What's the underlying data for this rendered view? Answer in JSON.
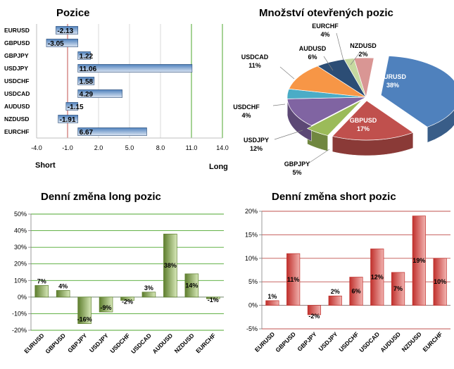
{
  "chart_data": [
    {
      "id": "pozice",
      "type": "bar",
      "orientation": "horizontal",
      "title": "Pozice",
      "categories": [
        "EURUSD",
        "GBPUSD",
        "GBPJPY",
        "USDJPY",
        "USDCHF",
        "USDCAD",
        "AUDUSD",
        "NZDUSD",
        "EURCHF"
      ],
      "values": [
        -2.13,
        -3.05,
        1.22,
        11.06,
        1.58,
        4.29,
        -1.15,
        -1.91,
        6.67
      ],
      "value_labels": [
        "-2.13",
        "-3.05",
        "1.22",
        "11.06",
        "1.58",
        "4.29",
        "-1.15",
        "-1.91",
        "6.67"
      ],
      "xlim": [
        -4.0,
        14.0
      ],
      "xticks": [
        "-4.0",
        "-1.0",
        "2.0",
        "5.0",
        "8.0",
        "11.0",
        "14.0"
      ],
      "xtick_values": [
        -4,
        -1,
        2,
        5,
        8,
        11,
        14
      ],
      "left_label": "Short",
      "right_label": "Long",
      "colors": {
        "bar": "#4f81bd",
        "bar_light": "#dbe5f3",
        "short_line": "#c0504d",
        "long_line": "#4ea72e"
      }
    },
    {
      "id": "mnozstvi",
      "type": "pie",
      "title": "Množství otevřených pozic",
      "slices": [
        {
          "name": "EURUSD",
          "value": 38,
          "label": "38%",
          "color": "#4f81bd"
        },
        {
          "name": "GBPUSD",
          "value": 17,
          "label": "17%",
          "color": "#c0504d"
        },
        {
          "name": "GBPJPY",
          "value": 5,
          "label": "5%",
          "color": "#9bbb59"
        },
        {
          "name": "USDJPY",
          "value": 12,
          "label": "12%",
          "color": "#8064a2"
        },
        {
          "name": "USDCHF",
          "value": 4,
          "label": "4%",
          "color": "#4bacc6"
        },
        {
          "name": "USDCAD",
          "value": 11,
          "label": "11%",
          "color": "#f79646"
        },
        {
          "name": "AUDUSD",
          "value": 6,
          "label": "6%",
          "color": "#2c4d75"
        },
        {
          "name": "NZDUSD",
          "value": 2,
          "label": "2%",
          "color": "#c6d9a0"
        },
        {
          "name": "EURCHF",
          "value": 4,
          "label": "4%",
          "color": "#d99694"
        }
      ]
    },
    {
      "id": "long",
      "type": "bar",
      "title": "Denní změna long pozic",
      "categories": [
        "EURUSD",
        "GBPUSD",
        "GBPJPY",
        "USDJPY",
        "USDCHF",
        "USDCAD",
        "AUDUSD",
        "NZDUSD",
        "EURCHF"
      ],
      "values": [
        7,
        4,
        -16,
        -9,
        -2,
        3,
        38,
        14,
        -1
      ],
      "value_labels": [
        "7%",
        "4%",
        "-16%",
        "-9%",
        "-2%",
        "3%",
        "38%",
        "14%",
        "-1%"
      ],
      "ylim": [
        -20,
        50
      ],
      "yticks": [
        "-20%",
        "-10%",
        "0%",
        "10%",
        "20%",
        "30%",
        "40%",
        "50%"
      ],
      "ytick_values": [
        -20,
        -10,
        0,
        10,
        20,
        30,
        40,
        50
      ],
      "colors": {
        "bar_dark": "#5e7e2e",
        "bar_light": "#d7e8b8",
        "grid": "#4ea72e"
      }
    },
    {
      "id": "short",
      "type": "bar",
      "title": "Denní změna short pozic",
      "categories": [
        "EURUSD",
        "GBPUSD",
        "GBPJPY",
        "USDJPY",
        "USDCHF",
        "USDCAD",
        "AUDUSD",
        "NZDUSD",
        "EURCHF"
      ],
      "values": [
        1,
        11,
        -2,
        2,
        6,
        12,
        7,
        19,
        10
      ],
      "value_labels": [
        "1%",
        "11%",
        "-2%",
        "2%",
        "6%",
        "12%",
        "7%",
        "19%",
        "10%"
      ],
      "ylim": [
        -5,
        20
      ],
      "yticks": [
        "-5%",
        "0%",
        "5%",
        "10%",
        "15%",
        "20%"
      ],
      "ytick_values": [
        -5,
        0,
        5,
        10,
        15,
        20
      ],
      "colors": {
        "bar_dark": "#c0302c",
        "bar_light": "#f2b3b0",
        "grid": "#c0504d"
      }
    }
  ]
}
